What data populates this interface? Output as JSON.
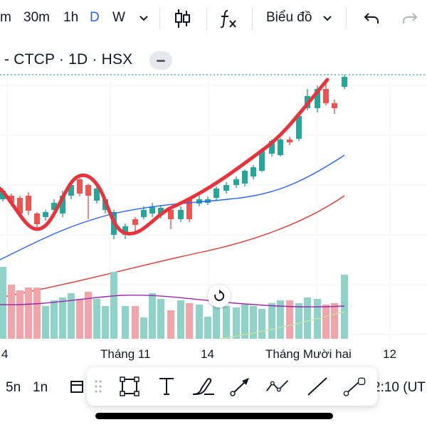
{
  "toolbar": {
    "timeframes": [
      "m",
      "30m",
      "1h",
      "D",
      "W"
    ],
    "active_timeframe": "D",
    "chart_type_label": "Biểu đồ",
    "icons": [
      "chevron-down-icon",
      "candlestick-icon",
      "indicators-fx-icon",
      "undo-icon",
      "redo-icon"
    ]
  },
  "symbol": {
    "text": "- CTCP · 1D · HSX"
  },
  "chart": {
    "up_color": "#26a69a",
    "up_volume_color": "#8fd3c8",
    "down_color": "#ef5350",
    "down_volume_color": "#f4a3a8",
    "ma_blue": "#2962ff",
    "ma_red": "#e53935",
    "volume_ma_purple": "#9c27b0",
    "drawn_line_color": "#e8323c",
    "price_line_color": "#26a69a"
  },
  "xaxis": {
    "labels": [
      "4",
      "Tháng 11",
      "14",
      "Tháng Mười hai",
      "12"
    ]
  },
  "bottom": {
    "left_items": [
      "5n",
      "1n"
    ],
    "time_text": "2:10 (UT"
  },
  "drawing_tools": [
    "grip-icon",
    "rectangle-icon",
    "text-icon",
    "brush-icon",
    "arrow-icon",
    "path-icon",
    "trend-line-icon",
    "ray-line-icon"
  ]
}
